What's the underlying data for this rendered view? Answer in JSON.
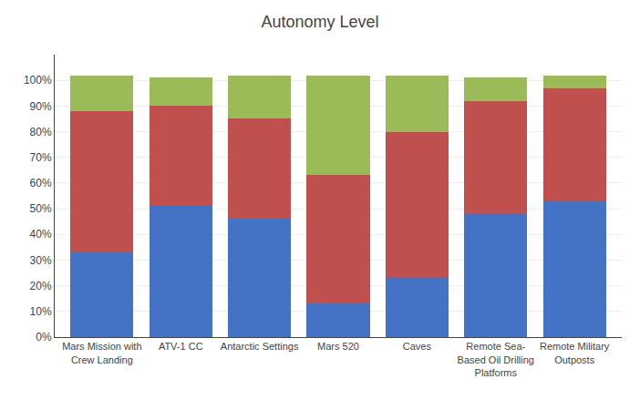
{
  "chart_data": {
    "type": "bar",
    "title": "Autonomy Level",
    "categories": [
      "Mars Mission with\nCrew Landing",
      "ATV-1 CC",
      "Antarctic Settings",
      "Mars 520",
      "Caves",
      "Remote Sea-\nBased Oil Drilling\nPlatforms",
      "Remote Military\nOutposts"
    ],
    "series": [
      {
        "color": "#4472C4",
        "values": [
          33,
          51,
          46,
          13,
          23,
          48,
          53
        ]
      },
      {
        "color": "#C0504D",
        "values": [
          55,
          39,
          39,
          50,
          57,
          44,
          44
        ]
      },
      {
        "color": "#9BBB59",
        "values": [
          14,
          11,
          17,
          39,
          22,
          9,
          5
        ]
      }
    ],
    "stacked": true,
    "ylim": [
      0,
      110
    ],
    "yticks": [
      {
        "value": 0,
        "label": "0%"
      },
      {
        "value": 10,
        "label": "10%"
      },
      {
        "value": 20,
        "label": "20%"
      },
      {
        "value": 30,
        "label": "30%"
      },
      {
        "value": 40,
        "label": "40%"
      },
      {
        "value": 50,
        "label": "50%"
      },
      {
        "value": 60,
        "label": "60%"
      },
      {
        "value": 70,
        "label": "70%"
      },
      {
        "value": 80,
        "label": "80%"
      },
      {
        "value": 90,
        "label": "90%"
      },
      {
        "value": 100,
        "label": "100%"
      }
    ],
    "grid": true
  }
}
